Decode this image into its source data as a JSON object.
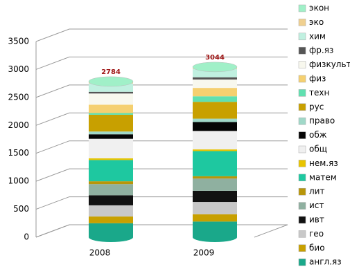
{
  "chart_data": {
    "type": "bar",
    "stacked": true,
    "categories": [
      "2008",
      "2009"
    ],
    "totals": [
      2784,
      3044
    ],
    "totals_color": "#a01818",
    "ylim": [
      0,
      3500
    ],
    "yticks": [
      0,
      500,
      1000,
      1500,
      2000,
      2500,
      3000,
      3500
    ],
    "grid": true,
    "legend": "right",
    "series": [
      {
        "name": "англ.яз",
        "color": "#1aa88a",
        "values": [
          250,
          280
        ]
      },
      {
        "name": "био",
        "color": "#c8a000",
        "values": [
          120,
          130
        ]
      },
      {
        "name": "гео",
        "color": "#c8c8c8",
        "values": [
          200,
          220
        ]
      },
      {
        "name": "ивт",
        "color": "#111111",
        "values": [
          180,
          200
        ]
      },
      {
        "name": "ист",
        "color": "#8fb0a0",
        "values": [
          200,
          220
        ]
      },
      {
        "name": "лит",
        "color": "#b8960a",
        "values": [
          50,
          40
        ]
      },
      {
        "name": "матем",
        "color": "#1ec8a0",
        "values": [
          380,
          450
        ]
      },
      {
        "name": "нем.яз",
        "color": "#e8c400",
        "values": [
          30,
          30
        ]
      },
      {
        "name": "общ",
        "color": "#f0f0f0",
        "values": [
          350,
          330
        ]
      },
      {
        "name": "обж",
        "color": "#050505",
        "values": [
          80,
          160
        ]
      },
      {
        "name": "право",
        "color": "#a0d8c8",
        "values": [
          50,
          60
        ]
      },
      {
        "name": "рус",
        "color": "#c8a000",
        "values": [
          300,
          300
        ]
      },
      {
        "name": "техн",
        "color": "#60e0b0",
        "values": [
          30,
          100
        ]
      },
      {
        "name": "физ",
        "color": "#f5d070",
        "values": [
          150,
          150
        ]
      },
      {
        "name": "физкульт",
        "color": "#f8f8ee",
        "values": [
          200,
          150
        ]
      },
      {
        "name": "фр.яз",
        "color": "#555555",
        "values": [
          30,
          40
        ]
      },
      {
        "name": "хим",
        "color": "#c0f0e0",
        "values": [
          150,
          150
        ]
      },
      {
        "name": "эко",
        "color": "#f0d090",
        "values": [
          20,
          20
        ]
      },
      {
        "name": "экон",
        "color": "#a0f0c8",
        "values": [
          14,
          14
        ]
      }
    ]
  }
}
